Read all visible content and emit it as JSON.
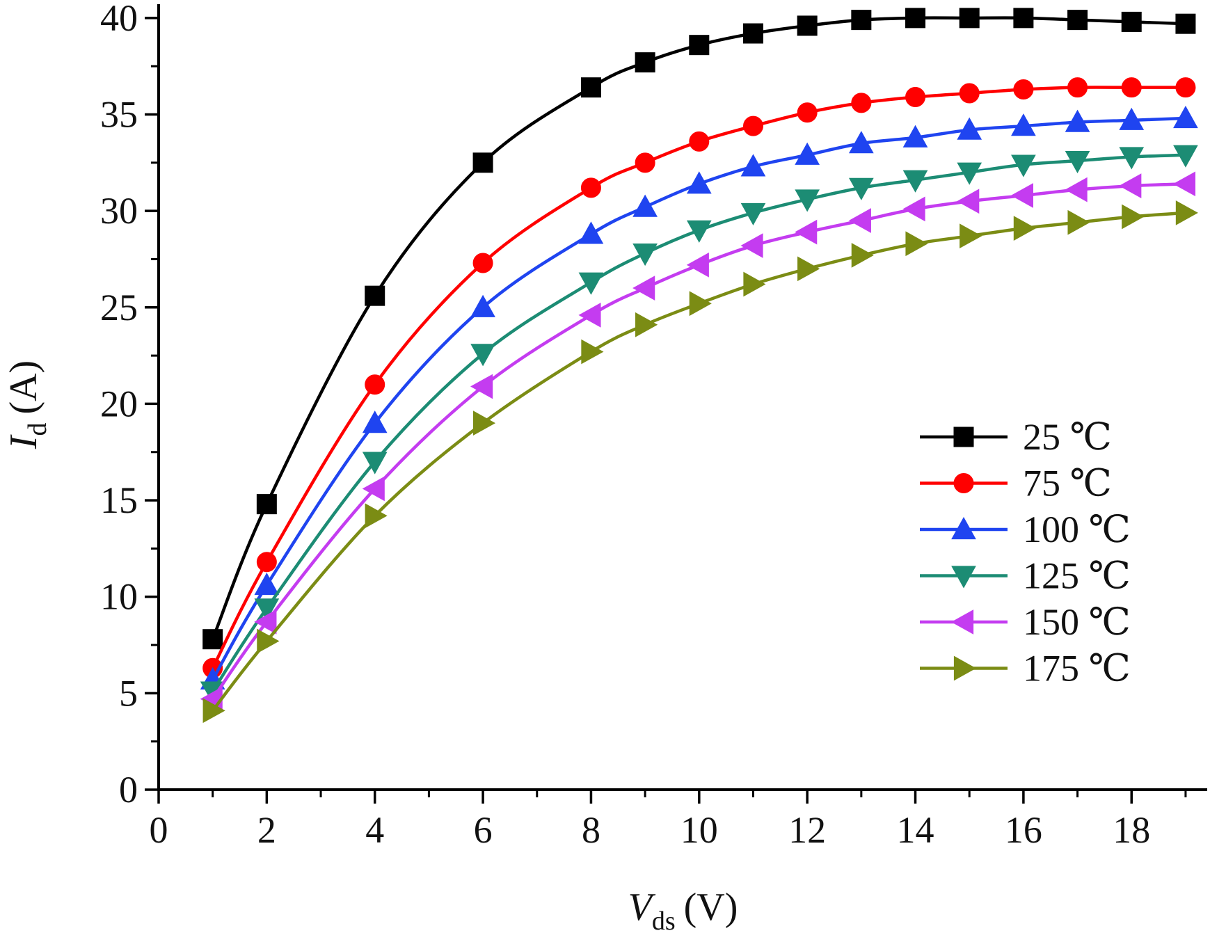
{
  "chart_data": {
    "type": "line",
    "xlabel": {
      "symbol": "V",
      "subscript": "ds",
      "unit": "(V)"
    },
    "ylabel": {
      "symbol": "I",
      "subscript": "d",
      "unit": "(A)"
    },
    "xlim": [
      0,
      19.4
    ],
    "ylim": [
      0,
      40.5
    ],
    "x_ticks": [
      0,
      2,
      4,
      6,
      8,
      10,
      12,
      14,
      16,
      18
    ],
    "y_ticks": [
      0,
      5,
      10,
      15,
      20,
      25,
      30,
      35,
      40
    ],
    "x_tick_labels": [
      "0",
      "2",
      "4",
      "6",
      "8",
      "10",
      "12",
      "14",
      "16",
      "18"
    ],
    "y_tick_labels": [
      "0",
      "5",
      "10",
      "15",
      "20",
      "25",
      "30",
      "35",
      "40"
    ],
    "grid": false,
    "legend_position": "right-middle",
    "x": [
      1,
      2,
      4,
      6,
      8,
      9,
      10,
      11,
      12,
      13,
      14,
      15,
      16,
      17,
      18,
      19
    ],
    "series": [
      {
        "name": "25 ℃",
        "color": "#000000",
        "marker": "square",
        "values": [
          7.8,
          14.8,
          25.6,
          32.5,
          36.4,
          37.7,
          38.6,
          39.2,
          39.6,
          39.9,
          40.0,
          40.0,
          40.0,
          39.9,
          39.8,
          39.7
        ]
      },
      {
        "name": "75 ℃",
        "color": "#ff0000",
        "marker": "circle",
        "values": [
          6.3,
          11.8,
          21.0,
          27.3,
          31.2,
          32.5,
          33.6,
          34.4,
          35.1,
          35.6,
          35.9,
          36.1,
          36.3,
          36.4,
          36.4,
          36.4
        ]
      },
      {
        "name": "100 ℃",
        "color": "#1f44f0",
        "marker": "triangle-up",
        "values": [
          5.7,
          10.6,
          19.0,
          25.0,
          28.8,
          30.2,
          31.4,
          32.3,
          32.9,
          33.5,
          33.8,
          34.2,
          34.4,
          34.6,
          34.7,
          34.8
        ]
      },
      {
        "name": "125 ℃",
        "color": "#1c8c74",
        "marker": "triangle-down",
        "values": [
          5.1,
          9.4,
          17.0,
          22.6,
          26.3,
          27.8,
          29.0,
          29.9,
          30.6,
          31.2,
          31.6,
          32.0,
          32.4,
          32.6,
          32.8,
          32.9
        ]
      },
      {
        "name": "150 ℃",
        "color": "#c43cf0",
        "marker": "triangle-left",
        "values": [
          4.7,
          8.7,
          15.6,
          20.9,
          24.6,
          26.0,
          27.2,
          28.2,
          28.9,
          29.5,
          30.1,
          30.5,
          30.8,
          31.1,
          31.3,
          31.4
        ]
      },
      {
        "name": "175 ℃",
        "color": "#7b8c14",
        "marker": "triangle-right",
        "values": [
          4.1,
          7.7,
          14.2,
          19.0,
          22.7,
          24.1,
          25.2,
          26.2,
          27.0,
          27.7,
          28.3,
          28.7,
          29.1,
          29.4,
          29.7,
          29.9
        ]
      }
    ]
  }
}
